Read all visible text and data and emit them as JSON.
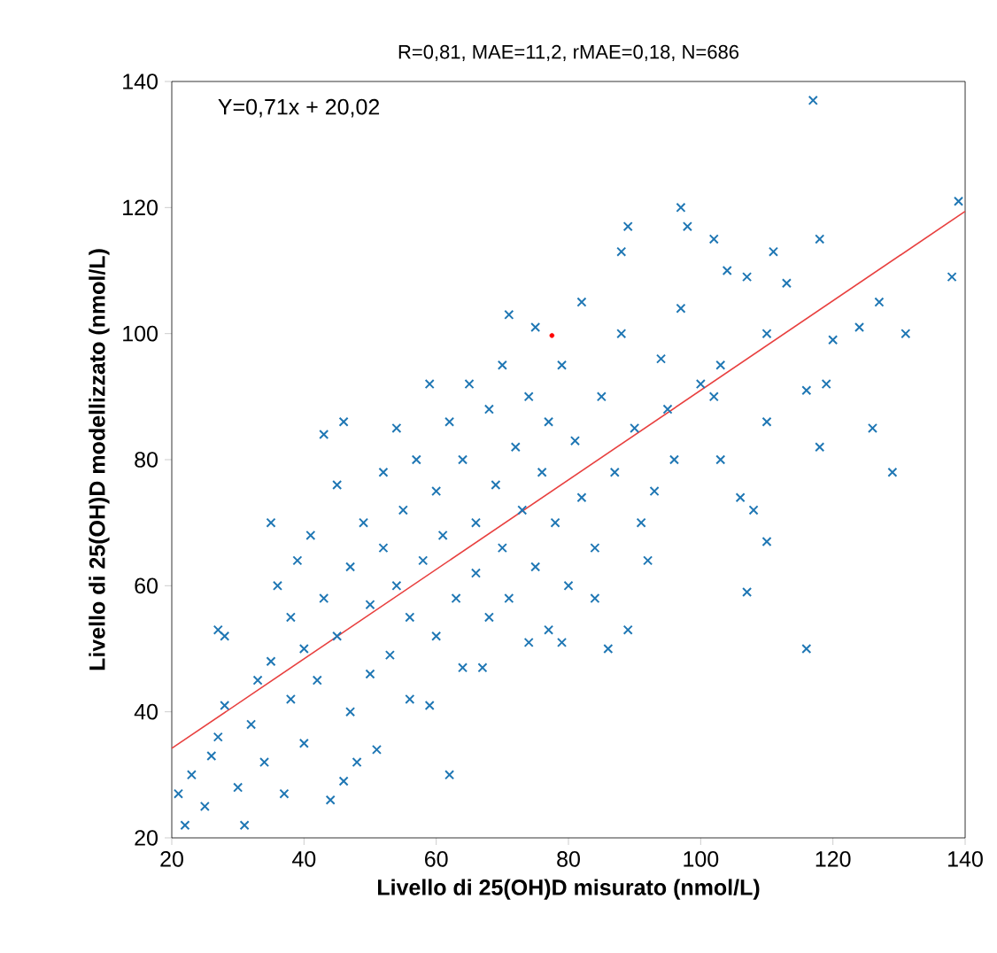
{
  "chart_data": {
    "type": "scatter",
    "title": "R=0,81, MAE=11,2, rMAE=0,18, N=686",
    "xlabel": "Livello di 25(OH)D misurato (nmol/L)",
    "ylabel": "Livello di 25(OH)D modellizzato (nmol/L)",
    "annotations": [
      "Y=0,71x + 20,02"
    ],
    "xlim": [
      20,
      140
    ],
    "ylim": [
      20,
      140
    ],
    "xticks": [
      20,
      40,
      60,
      80,
      100,
      120,
      140
    ],
    "yticks": [
      20,
      40,
      60,
      80,
      100,
      120,
      140
    ],
    "grid": false,
    "series": [
      {
        "marker": "cross",
        "color": "#1f77b4",
        "x": [
          21,
          22,
          23,
          25,
          26,
          27,
          28,
          27,
          28,
          30,
          31,
          32,
          33,
          34,
          35,
          35,
          36,
          37,
          38,
          38,
          39,
          40,
          40,
          41,
          42,
          43,
          43,
          44,
          45,
          45,
          46,
          46,
          47,
          47,
          48,
          49,
          50,
          50,
          51,
          52,
          52,
          53,
          54,
          54,
          55,
          56,
          56,
          57,
          58,
          59,
          59,
          60,
          60,
          61,
          62,
          62,
          63,
          64,
          64,
          65,
          66,
          66,
          67,
          68,
          68,
          69,
          70,
          70,
          71,
          71,
          72,
          73,
          74,
          74,
          75,
          75,
          76,
          77,
          77,
          78,
          79,
          79,
          80,
          81,
          82,
          82,
          84,
          84,
          85,
          86,
          87,
          88,
          88,
          89,
          89,
          90,
          91,
          92,
          93,
          94,
          95,
          96,
          97,
          98,
          97,
          100,
          102,
          102,
          103,
          103,
          104,
          106,
          107,
          107,
          108,
          110,
          110,
          110,
          111,
          113,
          116,
          116,
          117,
          118,
          118,
          119,
          120,
          124,
          126,
          127,
          129,
          131,
          138,
          139
        ],
        "values": [
          27,
          22,
          30,
          25,
          33,
          36,
          41,
          53,
          52,
          28,
          22,
          38,
          45,
          32,
          48,
          70,
          60,
          27,
          42,
          55,
          64,
          35,
          50,
          68,
          45,
          84,
          58,
          26,
          52,
          76,
          29,
          86,
          40,
          63,
          32,
          70,
          46,
          57,
          34,
          78,
          66,
          49,
          85,
          60,
          72,
          42,
          55,
          80,
          64,
          41,
          92,
          52,
          75,
          68,
          30,
          86,
          58,
          80,
          47,
          92,
          70,
          62,
          47,
          88,
          55,
          76,
          95,
          66,
          103,
          58,
          82,
          72,
          90,
          51,
          101,
          63,
          78,
          86,
          53,
          70,
          95,
          51,
          60,
          83,
          105,
          74,
          66,
          58,
          90,
          50,
          78,
          113,
          100,
          117,
          53,
          85,
          70,
          64,
          75,
          96,
          88,
          80,
          120,
          117,
          104,
          92,
          115,
          90,
          80,
          95,
          110,
          74,
          59,
          109,
          72,
          67,
          86,
          100,
          113,
          108,
          91,
          50,
          137,
          115,
          82,
          92,
          99,
          101,
          85,
          105,
          78,
          100,
          109,
          121
        ]
      },
      {
        "type": "line",
        "marker": "none",
        "color": "#e8403f",
        "x": [
          20,
          140
        ],
        "values": [
          34.2,
          119.4
        ]
      },
      {
        "type": "scatter",
        "marker": "circle",
        "color": "#ff0000",
        "x": [
          77.5
        ],
        "values": [
          99.7
        ]
      }
    ]
  }
}
